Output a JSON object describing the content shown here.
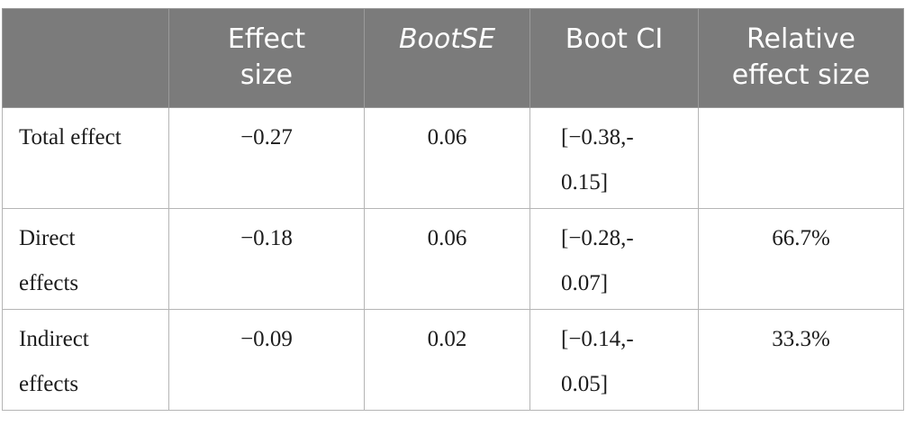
{
  "header": {
    "corner": "",
    "effect_size": [
      "Effect",
      "size"
    ],
    "boot_se": "BootSE",
    "boot_ci": "Boot CI",
    "relative_effect_size": [
      "Relative",
      "effect size"
    ]
  },
  "rows": [
    {
      "label": [
        "Total effect"
      ],
      "effect_size": "−0.27",
      "boot_se": "0.06",
      "boot_ci": [
        "[−0.38,-",
        "0.15]"
      ],
      "relative_effect_size": ""
    },
    {
      "label": [
        "Direct",
        "effects"
      ],
      "effect_size": "−0.18",
      "boot_se": "0.06",
      "boot_ci": [
        "[−0.28,-",
        "0.07]"
      ],
      "relative_effect_size": "66.7%"
    },
    {
      "label": [
        "Indirect",
        "effects"
      ],
      "effect_size": "−0.09",
      "boot_se": "0.02",
      "boot_ci": [
        "[−0.14,-",
        "0.05]"
      ],
      "relative_effect_size": "33.3%"
    }
  ]
}
